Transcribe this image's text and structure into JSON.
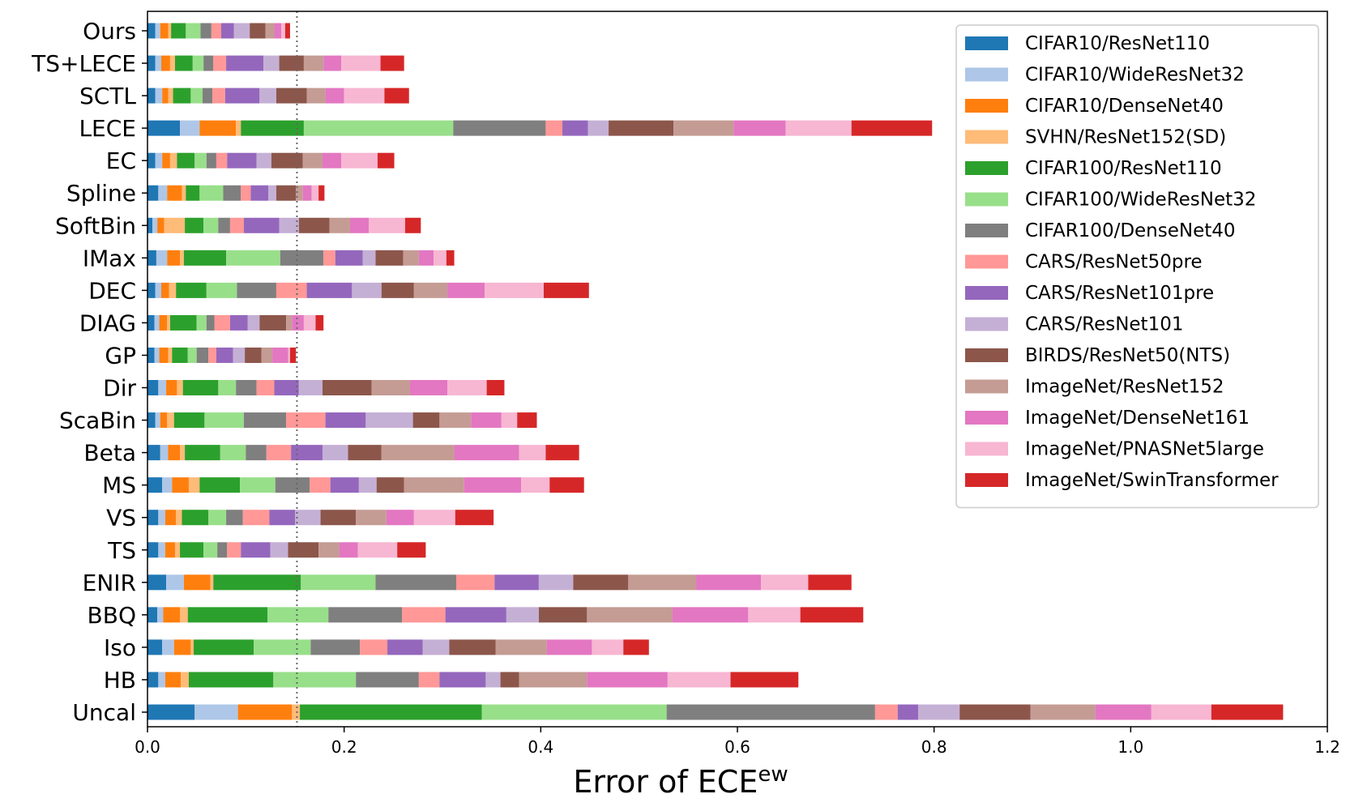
{
  "chart_data": {
    "type": "bar",
    "orientation": "horizontal",
    "stacked": true,
    "xlabel": "Error of ECE",
    "xlabel_superscript": "ew",
    "ylabel": "",
    "xlim": [
      0,
      1.2
    ],
    "xticks": [
      "0.0",
      "0.2",
      "0.4",
      "0.6",
      "0.8",
      "1.0",
      "1.2"
    ],
    "reference_line": 0.152,
    "grid": false,
    "legend_position": "top-right",
    "categories": [
      "Ours",
      "TS+LECE",
      "SCTL",
      "LECE",
      "EC",
      "Spline",
      "SoftBin",
      "IMax",
      "DEC",
      "DIAG",
      "GP",
      "Dir",
      "ScaBin",
      "Beta",
      "MS",
      "VS",
      "TS",
      "ENIR",
      "BBQ",
      "Iso",
      "HB",
      "Uncal"
    ],
    "series": [
      {
        "name": "CIFAR10/ResNet110",
        "color": "#1f77b4",
        "values": [
          0.008,
          0.008,
          0.008,
          0.033,
          0.008,
          0.011,
          0.005,
          0.009,
          0.008,
          0.007,
          0.007,
          0.011,
          0.008,
          0.013,
          0.015,
          0.011,
          0.011,
          0.019,
          0.01,
          0.015,
          0.011,
          0.048
        ]
      },
      {
        "name": "CIFAR10/WideResNet32",
        "color": "#aec7e8",
        "values": [
          0.005,
          0.006,
          0.007,
          0.02,
          0.007,
          0.009,
          0.005,
          0.011,
          0.006,
          0.005,
          0.005,
          0.008,
          0.005,
          0.008,
          0.01,
          0.007,
          0.007,
          0.018,
          0.006,
          0.012,
          0.007,
          0.044
        ]
      },
      {
        "name": "CIFAR10/DenseNet40",
        "color": "#ff7f0e",
        "values": [
          0.008,
          0.009,
          0.006,
          0.037,
          0.008,
          0.015,
          0.007,
          0.013,
          0.008,
          0.008,
          0.009,
          0.011,
          0.007,
          0.012,
          0.017,
          0.011,
          0.01,
          0.027,
          0.017,
          0.017,
          0.016,
          0.055
        ]
      },
      {
        "name": "SVHN/ResNet152(SD)",
        "color": "#ffbb78",
        "values": [
          0.003,
          0.005,
          0.005,
          0.005,
          0.007,
          0.004,
          0.021,
          0.004,
          0.007,
          0.003,
          0.004,
          0.006,
          0.007,
          0.005,
          0.011,
          0.006,
          0.005,
          0.003,
          0.008,
          0.003,
          0.008,
          0.008
        ]
      },
      {
        "name": "CIFAR100/ResNet110",
        "color": "#2ca02c",
        "values": [
          0.015,
          0.018,
          0.018,
          0.064,
          0.018,
          0.014,
          0.019,
          0.043,
          0.031,
          0.027,
          0.016,
          0.036,
          0.031,
          0.036,
          0.041,
          0.027,
          0.024,
          0.089,
          0.081,
          0.061,
          0.086,
          0.185
        ]
      },
      {
        "name": "CIFAR100/WideResNet32",
        "color": "#98df8a",
        "values": [
          0.015,
          0.011,
          0.012,
          0.152,
          0.012,
          0.024,
          0.015,
          0.055,
          0.031,
          0.01,
          0.009,
          0.018,
          0.04,
          0.026,
          0.036,
          0.018,
          0.014,
          0.076,
          0.062,
          0.058,
          0.084,
          0.188
        ]
      },
      {
        "name": "CIFAR100/DenseNet40",
        "color": "#7f7f7f",
        "values": [
          0.011,
          0.01,
          0.01,
          0.094,
          0.01,
          0.018,
          0.012,
          0.044,
          0.04,
          0.008,
          0.012,
          0.021,
          0.043,
          0.021,
          0.035,
          0.017,
          0.01,
          0.082,
          0.075,
          0.05,
          0.064,
          0.212
        ]
      },
      {
        "name": "CARS/ResNet50pre",
        "color": "#ff9896",
        "values": [
          0.01,
          0.013,
          0.013,
          0.017,
          0.011,
          0.01,
          0.014,
          0.012,
          0.031,
          0.016,
          0.008,
          0.018,
          0.04,
          0.025,
          0.021,
          0.027,
          0.014,
          0.039,
          0.044,
          0.028,
          0.021,
          0.023
        ]
      },
      {
        "name": "CARS/ResNet101pre",
        "color": "#9467bd",
        "values": [
          0.013,
          0.038,
          0.035,
          0.026,
          0.03,
          0.018,
          0.036,
          0.028,
          0.046,
          0.018,
          0.017,
          0.025,
          0.041,
          0.032,
          0.029,
          0.026,
          0.03,
          0.045,
          0.062,
          0.036,
          0.047,
          0.021
        ]
      },
      {
        "name": "CARS/ResNet101",
        "color": "#c5b0d5",
        "values": [
          0.016,
          0.016,
          0.017,
          0.021,
          0.015,
          0.008,
          0.02,
          0.013,
          0.03,
          0.012,
          0.012,
          0.024,
          0.048,
          0.026,
          0.018,
          0.026,
          0.018,
          0.035,
          0.033,
          0.027,
          0.015,
          0.042
        ]
      },
      {
        "name": "BIRDS/ResNet50(NTS)",
        "color": "#8c564b",
        "values": [
          0.016,
          0.025,
          0.031,
          0.066,
          0.032,
          0.02,
          0.031,
          0.028,
          0.033,
          0.027,
          0.017,
          0.05,
          0.027,
          0.034,
          0.028,
          0.036,
          0.031,
          0.056,
          0.049,
          0.047,
          0.019,
          0.072
        ]
      },
      {
        "name": "ImageNet/ResNet152",
        "color": "#c49c94",
        "values": [
          0.009,
          0.02,
          0.019,
          0.061,
          0.02,
          0.007,
          0.021,
          0.016,
          0.034,
          0.006,
          0.011,
          0.039,
          0.032,
          0.074,
          0.061,
          0.031,
          0.021,
          0.069,
          0.087,
          0.052,
          0.069,
          0.066
        ]
      },
      {
        "name": "ImageNet/DenseNet161",
        "color": "#e377c2",
        "values": [
          0.007,
          0.018,
          0.019,
          0.053,
          0.019,
          0.009,
          0.019,
          0.015,
          0.038,
          0.012,
          0.016,
          0.038,
          0.031,
          0.066,
          0.058,
          0.028,
          0.019,
          0.066,
          0.077,
          0.046,
          0.082,
          0.057
        ]
      },
      {
        "name": "ImageNet/PNASNet5large",
        "color": "#f7b6d2",
        "values": [
          0.004,
          0.04,
          0.041,
          0.067,
          0.037,
          0.007,
          0.037,
          0.013,
          0.06,
          0.012,
          0.002,
          0.04,
          0.016,
          0.027,
          0.029,
          0.042,
          0.04,
          0.048,
          0.053,
          0.032,
          0.064,
          0.061
        ]
      },
      {
        "name": "ImageNet/SwinTransformer",
        "color": "#d62728",
        "values": [
          0.005,
          0.024,
          0.025,
          0.082,
          0.017,
          0.006,
          0.016,
          0.008,
          0.046,
          0.008,
          0.006,
          0.018,
          0.02,
          0.034,
          0.035,
          0.039,
          0.029,
          0.044,
          0.064,
          0.026,
          0.069,
          0.073
        ]
      }
    ]
  }
}
